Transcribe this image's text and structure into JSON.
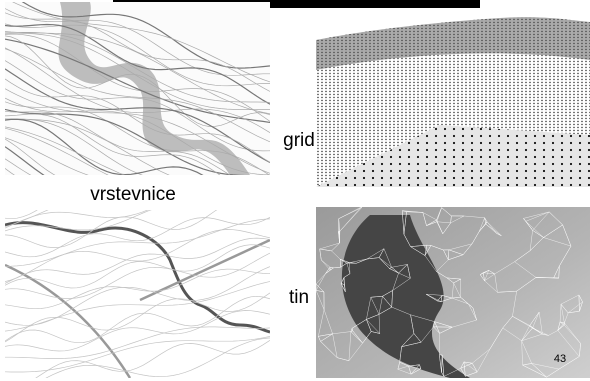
{
  "slide": {
    "labels": {
      "contours": "vrstevnice",
      "grid": "grid",
      "tin": "tin"
    },
    "page_number": "43"
  }
}
